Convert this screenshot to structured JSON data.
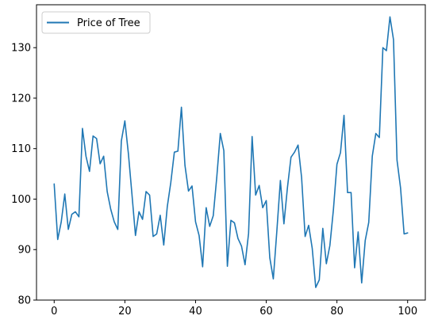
{
  "chart_data": {
    "type": "line",
    "title": "",
    "xlabel": "",
    "ylabel": "",
    "xlim": [
      -5,
      105
    ],
    "ylim": [
      80,
      138.5
    ],
    "xticks": [
      0,
      20,
      40,
      60,
      80,
      100
    ],
    "yticks": [
      80,
      90,
      100,
      110,
      120,
      130
    ],
    "grid": false,
    "legend_position": "top-left",
    "series": [
      {
        "name": "Price of Tree",
        "color": "#1f77b4",
        "x": [
          0,
          1,
          2,
          3,
          4,
          5,
          6,
          7,
          8,
          9,
          10,
          11,
          12,
          13,
          14,
          15,
          16,
          17,
          18,
          19,
          20,
          21,
          22,
          23,
          24,
          25,
          26,
          27,
          28,
          29,
          30,
          31,
          32,
          33,
          34,
          35,
          36,
          37,
          38,
          39,
          40,
          41,
          42,
          43,
          44,
          45,
          46,
          47,
          48,
          49,
          50,
          51,
          52,
          53,
          54,
          55,
          56,
          57,
          58,
          59,
          60,
          61,
          62,
          63,
          64,
          65,
          66,
          67,
          68,
          69,
          70,
          71,
          72,
          73,
          74,
          75,
          76,
          77,
          78,
          79,
          80,
          81,
          82,
          83,
          84,
          85,
          86,
          87,
          88,
          89,
          90,
          91,
          92,
          93,
          94,
          95,
          96,
          97,
          98,
          99,
          100
        ],
        "values": [
          103,
          92,
          95.5,
          101,
          94,
          97,
          97.5,
          96.5,
          114,
          108.5,
          105.5,
          112.5,
          112,
          107,
          108.5,
          101.5,
          98,
          95.5,
          94,
          111.5,
          115.5,
          109,
          101,
          92.8,
          97.5,
          96,
          101.5,
          100.8,
          92.6,
          93.1,
          96.8,
          90.9,
          98.5,
          103.3,
          109.3,
          109.5,
          118.2,
          106.7,
          101.6,
          102.6,
          95.5,
          92.8,
          86.6,
          98.3,
          94.6,
          96.7,
          104.3,
          113,
          109.6,
          86.7,
          95.8,
          95.3,
          92.2,
          90.7,
          87,
          93.2,
          112.4,
          100.8,
          102.7,
          98.3,
          99.7,
          88.4,
          84.2,
          93.7,
          103.7,
          95.1,
          102.3,
          108.3,
          109.3,
          110.7,
          104.3,
          92.6,
          94.8,
          90.3,
          82.5,
          84,
          94.2,
          87.2,
          90.8,
          97.9,
          106.9,
          109.2,
          116.6,
          101.3,
          101.3,
          86.4,
          93.5,
          83.4,
          91.8,
          95.4,
          108.5,
          113,
          112.2,
          130,
          129.4,
          136.1,
          131.6,
          107.7,
          102.2,
          93.1,
          93.3
        ]
      }
    ]
  }
}
